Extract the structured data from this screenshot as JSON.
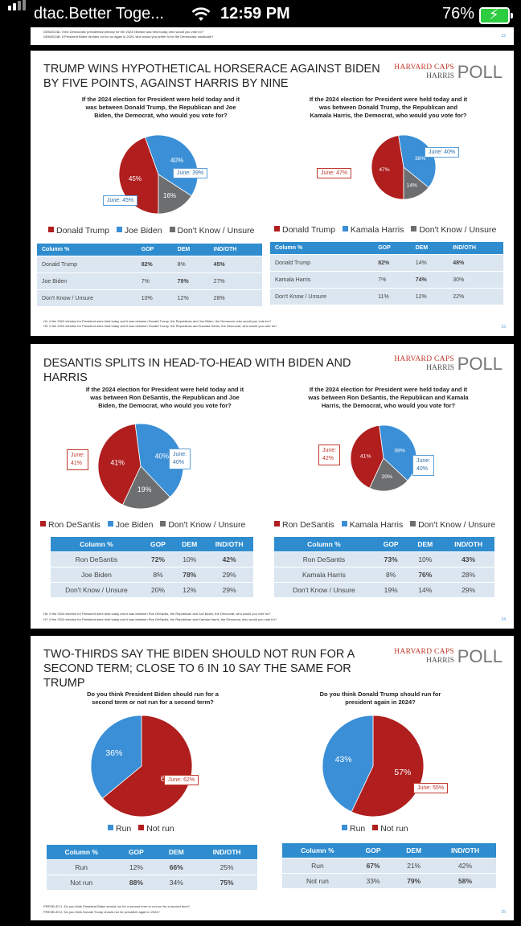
{
  "status_bar": {
    "carrier": "dtac.Better Toge...",
    "time": "12:59 PM",
    "battery": "76%"
  },
  "colors": {
    "trump": "#b01e1e",
    "dem": "#3a8fd6",
    "unsure": "#6d6e70",
    "header": "#2e8ccf"
  },
  "slide0": {
    "foot_1": "DEM2024A: If the Democratic presidential primary for the 2024 election was held today, who would you vote for?",
    "foot_2": "DEM2024B: If President Biden decides not to run again in 2024, who would you prefer to be the Democratic candidate?",
    "page": "22"
  },
  "slide1": {
    "title": "TRUMP WINS HYPOTHETICAL HORSERACE AGAINST BIDEN BY FIVE POINTS, AGAINST HARRIS BY NINE",
    "logo_1": "HARVARD CAPS",
    "logo_2": "HARRIS",
    "logo_3": "POLL",
    "left": {
      "question": "If the 2024 election for President were held today and it was between Donald Trump, the Republican and Joe Biden, the Democrat, who would you vote for?",
      "slices": [
        {
          "label": "45%",
          "value": 45
        },
        {
          "label": "40%",
          "value": 40
        },
        {
          "label": "16%",
          "value": 16
        }
      ],
      "callout_blue": "June: 39%",
      "callout_red": "June: 45%",
      "legend": [
        "Donald Trump",
        "Joe Biden",
        "Don't Know / Unsure"
      ],
      "table": {
        "headers": [
          "Column %",
          "GOP",
          "DEM",
          "IND/OTH"
        ],
        "rows": [
          [
            "Donald Trump",
            "82%",
            "8%",
            "45%"
          ],
          [
            "Joe Biden",
            "7%",
            "79%",
            "27%"
          ],
          [
            "Don't Know / Unsure",
            "10%",
            "12%",
            "28%"
          ]
        ]
      }
    },
    "right": {
      "question": "If the 2024 election for President were held today and it was between Donald Trump, the Republican and Kamala Harris, the Democrat, who would you vote for?",
      "slices": [
        {
          "label": "47%",
          "value": 47
        },
        {
          "label": "38%",
          "value": 38
        },
        {
          "label": "14%",
          "value": 14
        }
      ],
      "callout_blue": "June: 40%",
      "callout_red": "June: 47%",
      "legend": [
        "Donald Trump",
        "Kamala Harris",
        "Don't Know / Unsure"
      ],
      "table": {
        "headers": [
          "Column %",
          "GOP",
          "DEM",
          "IND/OTH"
        ],
        "rows": [
          [
            "Donald Trump",
            "82%",
            "14%",
            "48%"
          ],
          [
            "Kamala Harris",
            "7%",
            "74%",
            "30%"
          ],
          [
            "Don't Know / Unsure",
            "11%",
            "12%",
            "22%"
          ]
        ]
      }
    },
    "foot_1": "H1: If the 2024 election for President were held today and it was between Donald Trump, the Republican and Joe Biden, the Democrat, who would you vote for?",
    "foot_2": "H2: If the 2024 election for President were held today and it was between Donald Trump, the Republican and Kamala Harris, the Democrat, who would you vote for?",
    "page": "23"
  },
  "slide2": {
    "title": "DESANTIS SPLITS IN HEAD-TO-HEAD WITH BIDEN AND HARRIS",
    "logo_1": "HARVARD CAPS",
    "logo_2": "HARRIS",
    "logo_3": "POLL",
    "left": {
      "question": "If the 2024 election for President were held today and it was between Ron DeSantis, the Republican and Joe Biden, the Democrat, who would you vote for?",
      "slices": [
        {
          "label": "41%",
          "value": 41
        },
        {
          "label": "40%",
          "value": 40
        },
        {
          "label": "19%",
          "value": 19
        }
      ],
      "callout_blue_1": "June:",
      "callout_blue_2": "40%",
      "callout_red_1": "June:",
      "callout_red_2": "41%",
      "legend": [
        "Ron DeSantis",
        "Joe Biden",
        "Don't Know / Unsure"
      ],
      "table": {
        "headers": [
          "Column %",
          "GOP",
          "DEM",
          "IND/OTH"
        ],
        "rows": [
          [
            "Ron DeSantis",
            "72%",
            "10%",
            "42%"
          ],
          [
            "Joe Biden",
            "8%",
            "78%",
            "29%"
          ],
          [
            "Don't Know / Unsure",
            "20%",
            "12%",
            "29%"
          ]
        ]
      }
    },
    "right": {
      "question": "If the 2024 election for President were held today and it was between Ron DeSantis, the Republican and Kamala Harris, the Democrat, who would you vote for?",
      "slices": [
        {
          "label": "41%",
          "value": 41
        },
        {
          "label": "39%",
          "value": 39
        },
        {
          "label": "20%",
          "value": 20
        }
      ],
      "callout_blue_1": "June:",
      "callout_blue_2": "40%",
      "callout_red_1": "June:",
      "callout_red_2": "42%",
      "legend": [
        "Ron DeSantis",
        "Kamala Harris",
        "Don't Know / Unsure"
      ],
      "table": {
        "headers": [
          "Column %",
          "GOP",
          "DEM",
          "IND/OTH"
        ],
        "rows": [
          [
            "Ron DeSantis",
            "73%",
            "10%",
            "43%"
          ],
          [
            "Kamala Harris",
            "8%",
            "76%",
            "28%"
          ],
          [
            "Don't Know / Unsure",
            "19%",
            "14%",
            "29%"
          ]
        ]
      }
    },
    "foot_1": "H6: If the 2024 election for President were held today and it was between Ron DeSantis, the Republican and Joe Biden, the Democrat, who would you vote for?",
    "foot_2": "H7: If the 2024 election for President were held today and it was between Ron DeSantis, the Republican and Kamala Harris, the Democrat, who would you vote for?",
    "page": "24"
  },
  "slide3": {
    "title": "TWO-THIRDS SAY THE BIDEN SHOULD NOT RUN FOR A SECOND TERM; CLOSE TO 6 IN 10 SAY THE SAME FOR TRUMP",
    "logo_1": "HARVARD CAPS",
    "logo_2": "HARRIS",
    "logo_3": "POLL",
    "left": {
      "question": "Do you think President Biden should run for a second term or not run for a second term?",
      "slices": [
        {
          "label": "64%",
          "value": 64
        },
        {
          "label": "36%",
          "value": 36
        }
      ],
      "callout_red": "June: 62%",
      "legend": [
        "Run",
        "Not run"
      ],
      "table": {
        "headers": [
          "Column %",
          "GOP",
          "DEM",
          "IND/OTH"
        ],
        "rows": [
          [
            "Run",
            "12%",
            "66%",
            "25%"
          ],
          [
            "Not run",
            "88%",
            "34%",
            "75%"
          ]
        ]
      }
    },
    "right": {
      "question": "Do you think Donald Trump should run for president again in 2024?",
      "slices": [
        {
          "label": "57%",
          "value": 57
        },
        {
          "label": "43%",
          "value": 43
        }
      ],
      "callout_red": "June: 55%",
      "legend": [
        "Run",
        "Not run"
      ],
      "table": {
        "headers": [
          "Column %",
          "GOP",
          "DEM",
          "IND/OTH"
        ],
        "rows": [
          [
            "Run",
            "67%",
            "21%",
            "42%"
          ],
          [
            "Not run",
            "33%",
            "79%",
            "58%"
          ]
        ]
      }
    },
    "foot_1": "PRESELEC1: Do you think President Biden should run for a second term or not run for a second term?",
    "foot_2": "PRESELEC2: Do you think Donald Trump should run for president again in 2024?",
    "page": "25"
  }
}
